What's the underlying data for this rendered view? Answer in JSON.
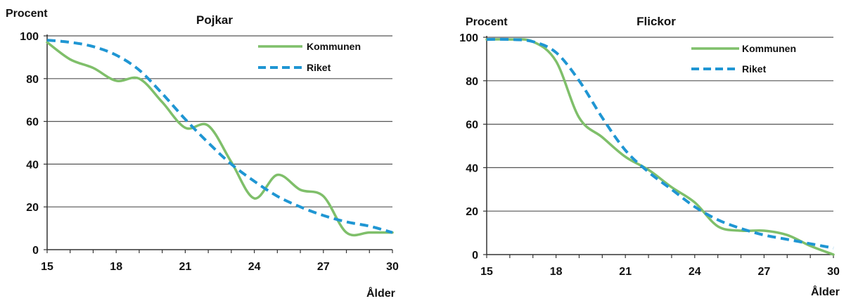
{
  "chart_data": [
    {
      "type": "line",
      "title": "Pojkar",
      "ylabel": "Procent",
      "xlabel": "Ålder",
      "xlim": [
        15,
        30
      ],
      "ylim": [
        0,
        100
      ],
      "xticks": [
        15,
        18,
        21,
        24,
        27,
        30
      ],
      "yticks": [
        0,
        20,
        40,
        60,
        80,
        100
      ],
      "grid": "horizontal",
      "legend": "top-right",
      "series": [
        {
          "name": "Kommunen",
          "color": "#7fbf6a",
          "style": "solid",
          "x": [
            15,
            16,
            17,
            18,
            19,
            20,
            21,
            22,
            23,
            24,
            25,
            26,
            27,
            28,
            29,
            30
          ],
          "y": [
            97,
            89,
            85,
            79,
            80,
            69,
            57,
            58,
            41,
            24,
            35,
            28,
            25,
            8,
            8,
            8
          ]
        },
        {
          "name": "Riket",
          "color": "#1f96d3",
          "style": "dashed",
          "x": [
            15,
            16,
            17,
            18,
            19,
            20,
            21,
            22,
            23,
            24,
            25,
            26,
            27,
            28,
            29,
            30
          ],
          "y": [
            98,
            97,
            95,
            91,
            84,
            73,
            61,
            50,
            40,
            32,
            25,
            20,
            16,
            13,
            11,
            8
          ]
        }
      ]
    },
    {
      "type": "line",
      "title": "Flickor",
      "ylabel": "Procent",
      "xlabel": "Ålder",
      "xlim": [
        15,
        30
      ],
      "ylim": [
        0,
        100
      ],
      "xticks": [
        15,
        18,
        21,
        24,
        27,
        30
      ],
      "yticks": [
        0,
        20,
        40,
        60,
        80,
        100
      ],
      "grid": "horizontal",
      "legend": "top-right",
      "series": [
        {
          "name": "Kommunen",
          "color": "#7fbf6a",
          "style": "solid",
          "x": [
            15,
            16,
            17,
            18,
            19,
            20,
            21,
            22,
            23,
            24,
            25,
            26,
            27,
            28,
            29,
            30
          ],
          "y": [
            99,
            99,
            98,
            89,
            63,
            54,
            45,
            39,
            31,
            24,
            13,
            11,
            11,
            9,
            4,
            0
          ]
        },
        {
          "name": "Riket",
          "color": "#1f96d3",
          "style": "dashed",
          "x": [
            15,
            16,
            17,
            18,
            19,
            20,
            21,
            22,
            23,
            24,
            25,
            26,
            27,
            28,
            29,
            30
          ],
          "y": [
            99,
            99,
            98,
            93,
            80,
            63,
            48,
            38,
            30,
            22,
            16,
            12,
            9,
            7,
            5,
            3
          ]
        }
      ]
    }
  ]
}
